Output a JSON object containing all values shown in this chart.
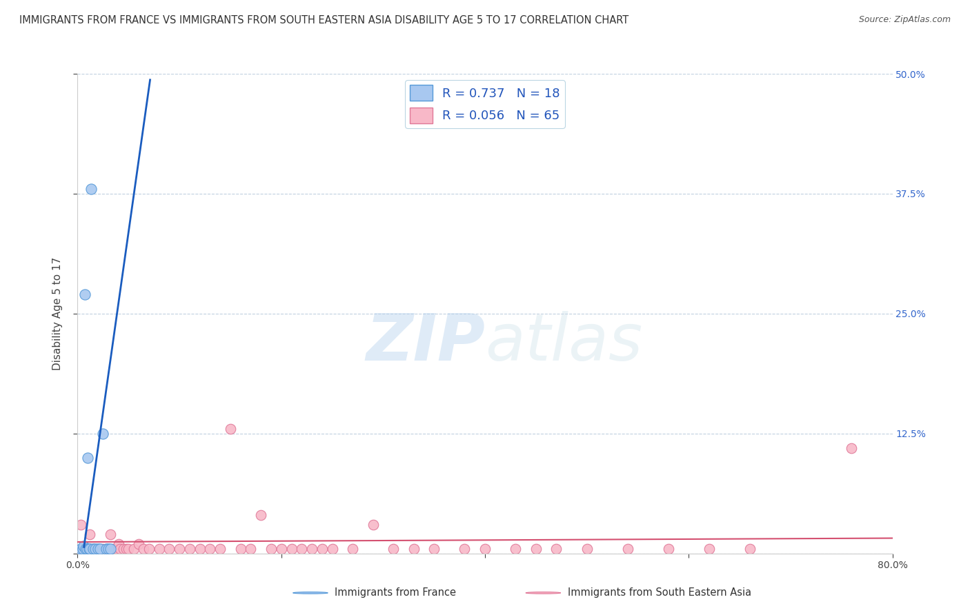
{
  "title": "IMMIGRANTS FROM FRANCE VS IMMIGRANTS FROM SOUTH EASTERN ASIA DISABILITY AGE 5 TO 17 CORRELATION CHART",
  "source": "Source: ZipAtlas.com",
  "ylabel": "Disability Age 5 to 17",
  "xlim": [
    0.0,
    0.8
  ],
  "ylim": [
    0.0,
    0.5
  ],
  "xticks": [
    0.0,
    0.2,
    0.4,
    0.6,
    0.8
  ],
  "xticklabels": [
    "0.0%",
    "",
    "",
    "",
    "80.0%"
  ],
  "yticks": [
    0.0,
    0.125,
    0.25,
    0.375,
    0.5
  ],
  "yticklabels": [
    "",
    "12.5%",
    "25.0%",
    "37.5%",
    "50.0%"
  ],
  "france_color": "#a8c8f0",
  "france_edge_color": "#5599d8",
  "sea_color": "#f8b8c8",
  "sea_edge_color": "#e07898",
  "france_R": 0.737,
  "france_N": 18,
  "sea_R": 0.056,
  "sea_N": 65,
  "france_line_color": "#1a5cbf",
  "sea_line_color": "#d45070",
  "legend_label_france": "Immigrants from France",
  "legend_label_sea": "Immigrants from South Eastern Asia",
  "france_x": [
    0.003,
    0.005,
    0.006,
    0.007,
    0.008,
    0.009,
    0.01,
    0.011,
    0.012,
    0.013,
    0.015,
    0.017,
    0.02,
    0.022,
    0.025,
    0.028,
    0.03,
    0.032
  ],
  "france_y": [
    0.005,
    0.005,
    0.008,
    0.27,
    0.005,
    0.005,
    0.1,
    0.005,
    0.005,
    0.38,
    0.005,
    0.005,
    0.005,
    0.005,
    0.125,
    0.005,
    0.005,
    0.005
  ],
  "sea_x": [
    0.003,
    0.004,
    0.005,
    0.006,
    0.007,
    0.008,
    0.009,
    0.01,
    0.011,
    0.012,
    0.013,
    0.015,
    0.016,
    0.018,
    0.02,
    0.022,
    0.025,
    0.028,
    0.03,
    0.032,
    0.035,
    0.038,
    0.04,
    0.042,
    0.045,
    0.048,
    0.05,
    0.055,
    0.06,
    0.065,
    0.07,
    0.08,
    0.09,
    0.1,
    0.11,
    0.12,
    0.13,
    0.14,
    0.15,
    0.16,
    0.17,
    0.18,
    0.19,
    0.2,
    0.21,
    0.22,
    0.23,
    0.24,
    0.25,
    0.27,
    0.29,
    0.31,
    0.33,
    0.35,
    0.38,
    0.4,
    0.43,
    0.45,
    0.47,
    0.5,
    0.54,
    0.58,
    0.62,
    0.66,
    0.76
  ],
  "sea_y": [
    0.03,
    0.005,
    0.005,
    0.005,
    0.005,
    0.005,
    0.005,
    0.005,
    0.005,
    0.02,
    0.005,
    0.005,
    0.005,
    0.005,
    0.005,
    0.005,
    0.005,
    0.005,
    0.005,
    0.02,
    0.005,
    0.005,
    0.01,
    0.005,
    0.005,
    0.005,
    0.005,
    0.005,
    0.01,
    0.005,
    0.005,
    0.005,
    0.005,
    0.005,
    0.005,
    0.005,
    0.005,
    0.005,
    0.13,
    0.005,
    0.005,
    0.04,
    0.005,
    0.005,
    0.005,
    0.005,
    0.005,
    0.005,
    0.005,
    0.005,
    0.03,
    0.005,
    0.005,
    0.005,
    0.005,
    0.005,
    0.005,
    0.005,
    0.005,
    0.005,
    0.005,
    0.005,
    0.005,
    0.005,
    0.11
  ],
  "background_color": "#ffffff",
  "grid_color": "#c0d0e0"
}
